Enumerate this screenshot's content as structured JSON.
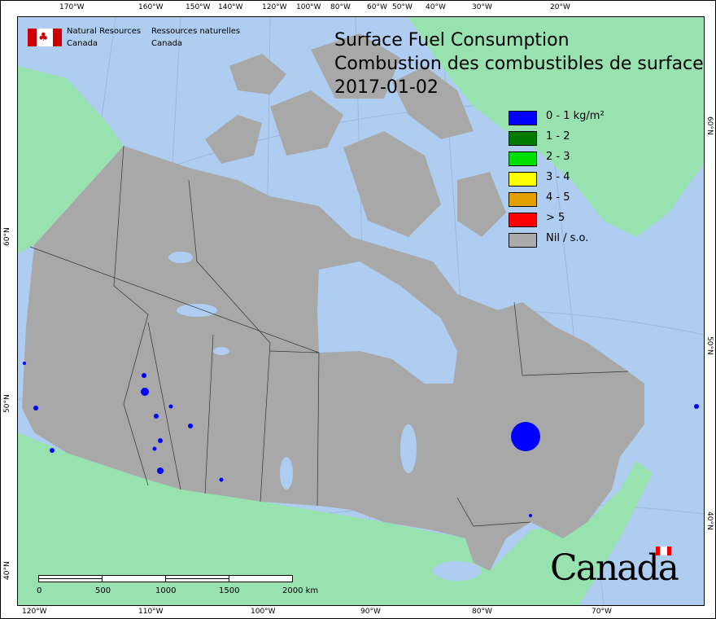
{
  "agency": {
    "en_line1": "Natural Resources",
    "en_line2": "Canada",
    "fr_line1": "Ressources naturelles",
    "fr_line2": "Canada"
  },
  "title": {
    "en": "Surface Fuel Consumption",
    "fr": "Combustion des combustibles de surface",
    "date": "2017-01-02"
  },
  "legend": [
    {
      "label": "0 - 1 kg/m²",
      "color": "#0000ff"
    },
    {
      "label": "1 - 2",
      "color": "#007a00"
    },
    {
      "label": "2 - 3",
      "color": "#00e000"
    },
    {
      "label": "3 - 4",
      "color": "#ffff00"
    },
    {
      "label": "4 - 5",
      "color": "#e0a000"
    },
    {
      "label": "> 5",
      "color": "#ff0000"
    },
    {
      "label": "Nil / s.o.",
      "color": "#aaaaaa"
    }
  ],
  "top_ticks": [
    "170°W",
    "160°W",
    "150°W",
    "140°W",
    "120°W",
    "100°W",
    "80°W",
    "60°W",
    "50°W",
    "40°W",
    "30°W",
    "20°W"
  ],
  "bottom_ticks": [
    "120°W",
    "110°W",
    "100°W",
    "90°W",
    "80°W",
    "70°W"
  ],
  "left_ticks": [
    "60°N",
    "50°N",
    "40°N"
  ],
  "right_ticks": [
    "60°N",
    "50°N",
    "40°N"
  ],
  "scale": {
    "labels": [
      "0",
      "500",
      "1000",
      "1500",
      "2000  km"
    ]
  },
  "wordmark": "Canada",
  "colors": {
    "ocean": "#aecdf0",
    "land_canada": "#a8a8a8",
    "land_other": "#98e2b0",
    "fire": "#0000ff"
  }
}
